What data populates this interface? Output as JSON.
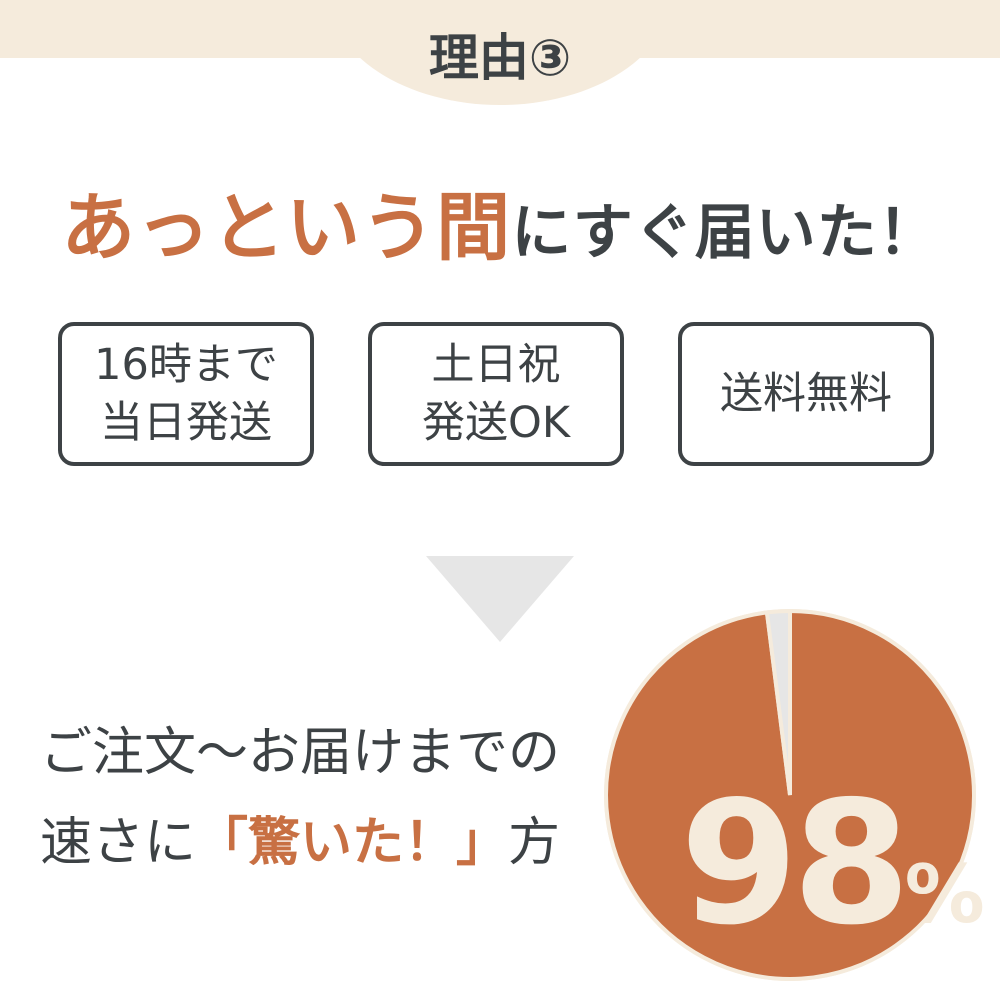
{
  "header": {
    "reason_label": "理由③"
  },
  "headline": {
    "part1": "あっという間",
    "part2": "にすぐ届いた！"
  },
  "features": [
    {
      "line1": "16時まで",
      "line2": "当日発送"
    },
    {
      "line1": "土日祝",
      "line2": "発送OK"
    },
    {
      "line1": "送料無料",
      "line2": ""
    }
  ],
  "message": {
    "line1": "ご注文〜お届けまでの",
    "line2_pre": "速さに",
    "line2_highlight": "「驚いた！」",
    "line2_post": "方"
  },
  "chart_data": {
    "type": "pie",
    "values": [
      98,
      2
    ],
    "colors": [
      "#c87043",
      "#e6e6e6"
    ],
    "label": "98",
    "unit": "%"
  },
  "colors": {
    "accent": "#c87043",
    "text": "#3d4245",
    "cream": "#f5ebdc"
  }
}
